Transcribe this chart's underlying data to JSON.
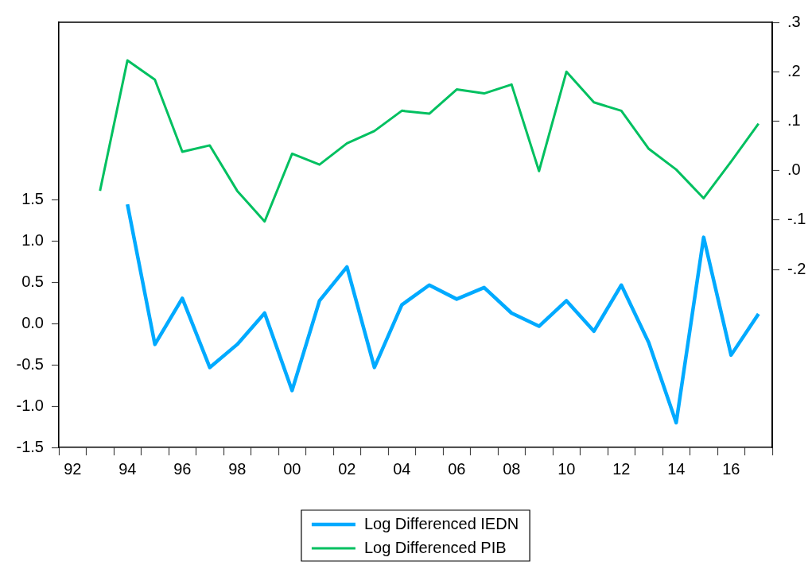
{
  "chart_data": {
    "type": "line",
    "x": [
      1993,
      1994,
      1995,
      1996,
      1997,
      1998,
      1999,
      2000,
      2001,
      2002,
      2003,
      2004,
      2005,
      2006,
      2007,
      2008,
      2009,
      2010,
      2011,
      2012,
      2013,
      2014,
      2015,
      2016,
      2017
    ],
    "xlim": [
      1991.5,
      2017.5
    ],
    "xticks": [
      {
        "value": 1991.5,
        "label": null
      },
      {
        "value": 1992,
        "label": "92"
      },
      {
        "value": 1992.5,
        "label": null
      },
      {
        "value": 1993.5,
        "label": null
      },
      {
        "value": 1994,
        "label": "94"
      },
      {
        "value": 1994.5,
        "label": null
      },
      {
        "value": 1995.5,
        "label": null
      },
      {
        "value": 1996,
        "label": "96"
      },
      {
        "value": 1996.5,
        "label": null
      },
      {
        "value": 1997.5,
        "label": null
      },
      {
        "value": 1998,
        "label": "98"
      },
      {
        "value": 1998.5,
        "label": null
      },
      {
        "value": 1999.5,
        "label": null
      },
      {
        "value": 2000,
        "label": "00"
      },
      {
        "value": 2000.5,
        "label": null
      },
      {
        "value": 2001.5,
        "label": null
      },
      {
        "value": 2002,
        "label": "02"
      },
      {
        "value": 2002.5,
        "label": null
      },
      {
        "value": 2003.5,
        "label": null
      },
      {
        "value": 2004,
        "label": "04"
      },
      {
        "value": 2004.5,
        "label": null
      },
      {
        "value": 2005.5,
        "label": null
      },
      {
        "value": 2006,
        "label": "06"
      },
      {
        "value": 2006.5,
        "label": null
      },
      {
        "value": 2007.5,
        "label": null
      },
      {
        "value": 2008,
        "label": "08"
      },
      {
        "value": 2008.5,
        "label": null
      },
      {
        "value": 2009.5,
        "label": null
      },
      {
        "value": 2010,
        "label": "10"
      },
      {
        "value": 2010.5,
        "label": null
      },
      {
        "value": 2011.5,
        "label": null
      },
      {
        "value": 2012,
        "label": "12"
      },
      {
        "value": 2012.5,
        "label": null
      },
      {
        "value": 2013.5,
        "label": null
      },
      {
        "value": 2014,
        "label": "14"
      },
      {
        "value": 2014.5,
        "label": null
      },
      {
        "value": 2015.5,
        "label": null
      },
      {
        "value": 2016,
        "label": "16"
      },
      {
        "value": 2016.5,
        "label": null
      },
      {
        "value": 2017.5,
        "label": null
      }
    ],
    "ylim": [
      -1.5,
      3.66
    ],
    "yticks": [
      -1.5,
      {
        "value": -1,
        "label": "-1.0"
      },
      -0.5,
      {
        "value": 0,
        "label": "0.0"
      },
      0.5,
      {
        "value": 1,
        "label": "1.0"
      },
      1.5
    ],
    "y2lim": [
      -0.56,
      0.3
    ],
    "y2ticks": [
      {
        "value": -0.2,
        "label": "-.2"
      },
      {
        "value": -0.1,
        "label": "-.1"
      },
      {
        "value": 0,
        "label": ".0"
      },
      {
        "value": 0.1,
        "label": ".1"
      },
      {
        "value": 0.2,
        "label": ".2"
      },
      {
        "value": 0.3,
        "label": ".3"
      }
    ],
    "legend": "bottom",
    "series": [
      {
        "name": "Log Differenced IEDN",
        "color": "#00aaff",
        "values": [
          null,
          1.45,
          -0.25,
          0.31,
          -0.53,
          -0.25,
          0.13,
          -0.81,
          0.28,
          0.69,
          -0.53,
          0.23,
          0.47,
          0.3,
          0.44,
          0.13,
          -0.03,
          0.28,
          -0.09,
          0.47,
          -0.23,
          -1.2,
          1.05,
          -0.38,
          0.12
        ]
      },
      {
        "name": "Log Differenced PIB",
        "color": "#00c060",
        "axis": "y2",
        "values": [
          -0.041,
          0.223,
          0.184,
          0.038,
          0.051,
          -0.041,
          -0.103,
          0.034,
          0.012,
          0.055,
          0.08,
          0.121,
          0.115,
          0.164,
          0.156,
          0.174,
          -0.001,
          0.2,
          0.138,
          0.121,
          0.044,
          0.002,
          -0.056,
          0.018,
          0.095
        ]
      }
    ]
  }
}
